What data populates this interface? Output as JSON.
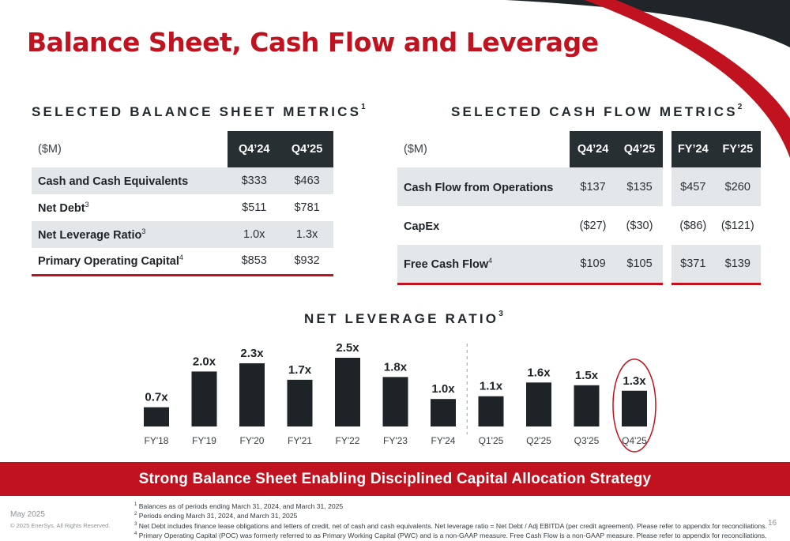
{
  "title": "Balance Sheet, Cash Flow and Leverage",
  "balance_sheet": {
    "heading": "SELECTED BALANCE SHEET METRICS",
    "heading_note": "1",
    "unit": "($M)",
    "columns": [
      "Q4’24",
      "Q4’25"
    ],
    "rows": [
      {
        "label": "Cash and Cash Equivalents",
        "note": "",
        "values": [
          "$333",
          "$463"
        ]
      },
      {
        "label": "Net Debt",
        "note": "3",
        "values": [
          "$511",
          "$781"
        ]
      },
      {
        "label": "Net Leverage Ratio",
        "note": "3",
        "values": [
          "1.0x",
          "1.3x"
        ]
      },
      {
        "label": "Primary Operating Capital",
        "note": "4",
        "values": [
          "$853",
          "$932"
        ]
      }
    ]
  },
  "cash_flow": {
    "heading": "SELECTED CASH FLOW METRICS",
    "heading_note": "2",
    "unit": "($M)",
    "quarter_columns": [
      "Q4’24",
      "Q4’25"
    ],
    "year_columns": [
      "FY’24",
      "FY’25"
    ],
    "rows": [
      {
        "label": "Cash Flow from Operations",
        "note": "",
        "quarter": [
          "$137",
          "$135"
        ],
        "year": [
          "$457",
          "$260"
        ]
      },
      {
        "label": "CapEx",
        "note": "",
        "quarter": [
          "($27)",
          "($30)"
        ],
        "year": [
          "($86)",
          "($121)"
        ]
      },
      {
        "label": "Free Cash Flow",
        "note": "4",
        "quarter": [
          "$109",
          "$105"
        ],
        "year": [
          "$371",
          "$139"
        ]
      }
    ]
  },
  "chart_data": {
    "type": "bar",
    "title": "NET LEVERAGE RATIO",
    "title_note": "3",
    "categories": [
      "FY'18",
      "FY'19",
      "FY'20",
      "FY'21",
      "FY'22",
      "FY'23",
      "FY'24",
      "Q1'25",
      "Q2'25",
      "Q3'25",
      "Q4'25"
    ],
    "values": [
      0.7,
      2.0,
      2.3,
      1.7,
      2.5,
      1.8,
      1.0,
      1.1,
      1.6,
      1.5,
      1.3
    ],
    "data_labels": [
      "0.7x",
      "2.0x",
      "2.3x",
      "1.7x",
      "2.5x",
      "1.8x",
      "1.0x",
      "1.1x",
      "1.6x",
      "1.5x",
      "1.3x"
    ],
    "ylim": [
      0,
      2.5
    ],
    "divider_after_index": 6,
    "highlight_index": 10,
    "bar_color": "#1d2327",
    "highlight_color": "#c1121f"
  },
  "banner": "Strong Balance Sheet Enabling Disciplined Capital Allocation Strategy",
  "footnotes": [
    {
      "num": "1",
      "text": "Balances as of periods ending March 31, 2024, and March 31, 2025"
    },
    {
      "num": "2",
      "text": "Periods ending March 31, 2024, and March 31, 2025"
    },
    {
      "num": "3",
      "text": "Net Debt includes finance lease obligations and letters of credit, net of cash and cash equivalents. Net leverage ratio = Net Debt / Adj EBITDA (per credit agreement). Please refer to appendix for reconciliations."
    },
    {
      "num": "4",
      "text": "Primary Operating Capital (POC) was formerly referred to as Primary Working Capital (PWC) and is a non-GAAP measure. Free Cash Flow is a non-GAAP measure. Please refer to appendix for reconciliations."
    }
  ],
  "footer": {
    "date": "May 2025",
    "copyright": "© 2025 EnerSys. All Rights Reserved.",
    "page": "16"
  },
  "colors": {
    "brand_red": "#c1121f",
    "dark": "#272f33",
    "row_shade": "#e4e7ea"
  }
}
